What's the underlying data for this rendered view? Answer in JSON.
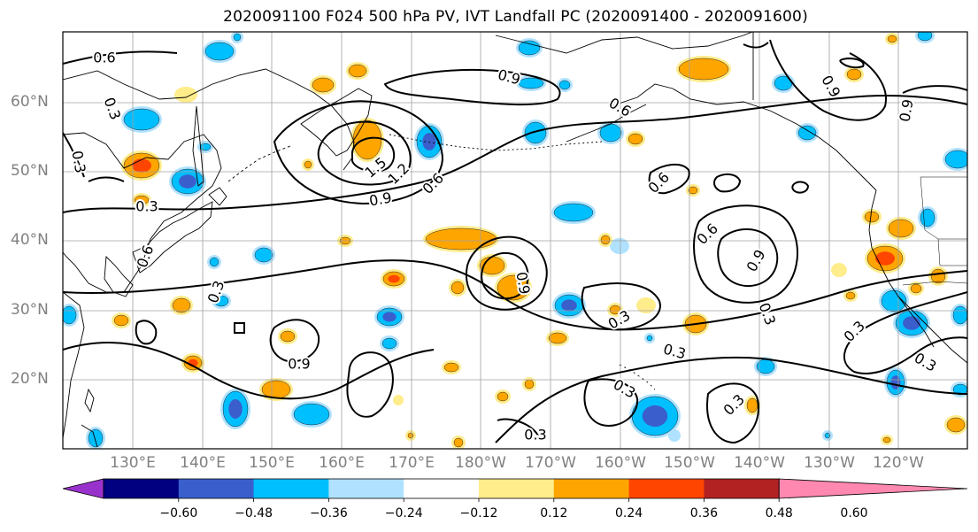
{
  "title": "2020091100 F024 500 hPa PV, IVT Landfall PC (2020091400 - 2020091600)",
  "lat_labels": [
    "60°N",
    "50°N",
    "40°N",
    "30°N",
    "20°N"
  ],
  "lon_labels": [
    "130°E",
    "140°E",
    "150°E",
    "160°E",
    "170°E",
    "180°W",
    "170°W",
    "160°W",
    "150°W",
    "140°W",
    "130°W",
    "120°W"
  ],
  "contour_labels": [
    "0.6",
    "0.9",
    "1.2",
    "1.5",
    "0.3",
    "0.6",
    "0.9",
    "0.3",
    "0.6",
    "0.9",
    "0.3",
    "0.6",
    "0.9",
    "0.9",
    "0.6",
    "0.9",
    "0.9",
    "0.3",
    "0.3",
    "0.3",
    "0.3",
    "0.3",
    "0.3",
    "0.3",
    "0.3",
    "0.3",
    "0.6"
  ],
  "colorbar": {
    "ticks": [
      "−0.60",
      "−0.48",
      "−0.36",
      "−0.24",
      "−0.12",
      "0.12",
      "0.24",
      "0.36",
      "0.48",
      "0.60"
    ],
    "colors": [
      "#9932cc",
      "#000080",
      "#3a5fcd",
      "#00bfff",
      "#b0e2ff",
      "#ffffff",
      "#ffec8b",
      "#ffa500",
      "#ff4500",
      "#b22222",
      "#ff88b0"
    ]
  },
  "colors": {
    "grid": "#a0a0a0",
    "contour": "#000000",
    "coast": "#000000",
    "neg_light": "#b0e2ff",
    "neg_mid": "#00bfff",
    "neg_dark": "#3a5fcd",
    "neg_deep": "#9932cc",
    "pos_light": "#ffec8b",
    "pos_mid": "#ffa500",
    "pos_dark": "#ff4500"
  }
}
